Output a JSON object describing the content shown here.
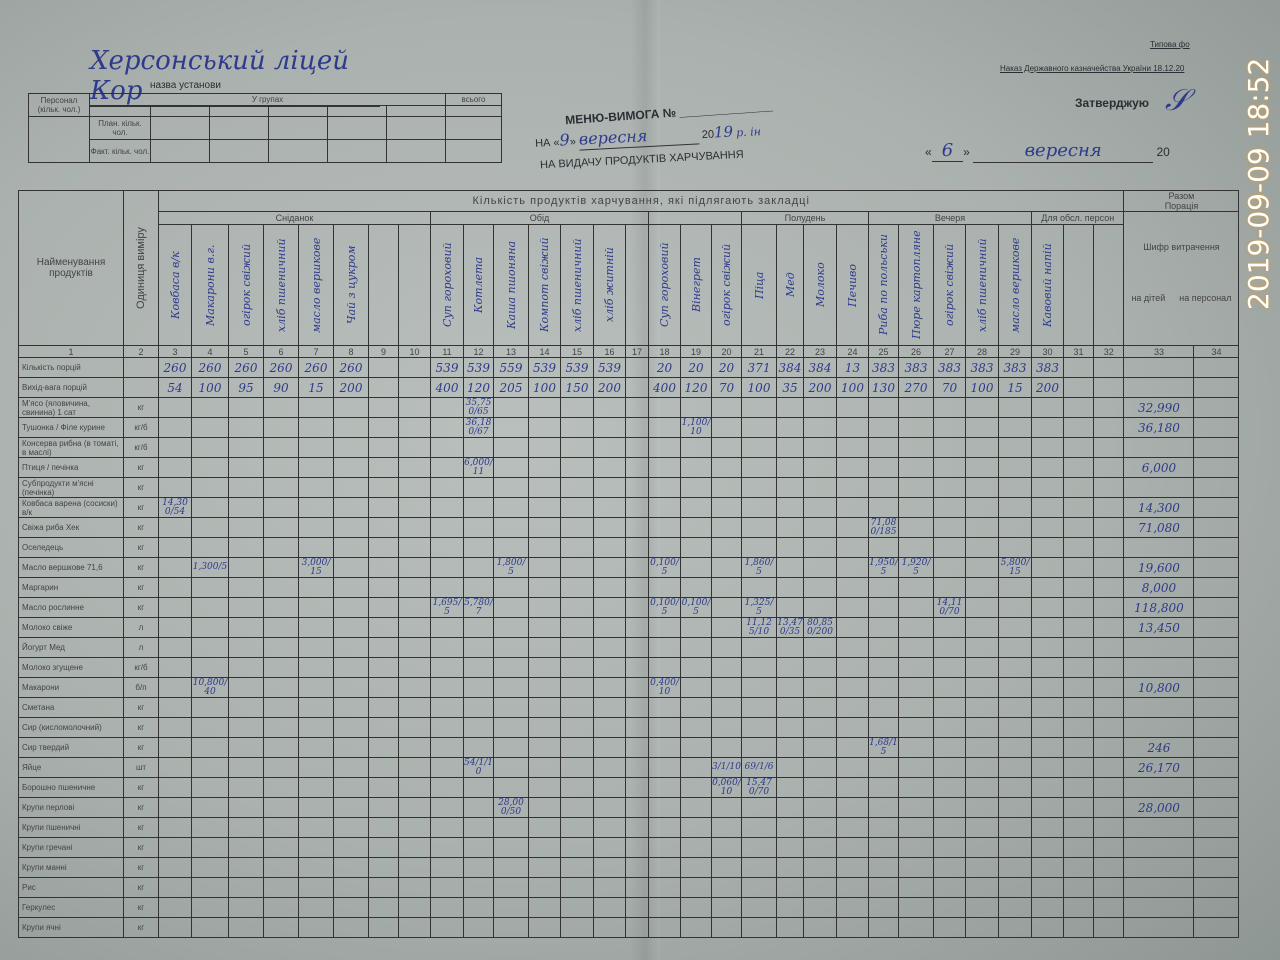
{
  "header": {
    "institution_handwritten": "Херсонський ліцей Кор",
    "institution_caption": "назва установи",
    "typical_form": "Типова фо",
    "order_text": "Наказ Державного казначейства України 18.12.20",
    "title": "МЕНЮ-ВИМОГА №",
    "on_label": "НА «",
    "on_day": "9",
    "on_month": "вересня",
    "on_year_prefix": "20",
    "on_year": "19",
    "on_year_suffix": "р. ін",
    "subtitle": "НА ВИДАЧУ ПРОДУКТІВ ХАРЧУВАННЯ",
    "approve_label": "Затверджую",
    "approve_day": "6",
    "approve_month": "вересня",
    "approve_year_prefix": "20"
  },
  "staff_table": {
    "staff_label": "Персонал (кільк. чол.)",
    "groups_label": "У групах",
    "total_label": "всього",
    "plan_label": "План. кільк. чол.",
    "fact_label": "Факт. кільк. чол."
  },
  "grid": {
    "products_header": "Найменування продуктів",
    "unit_header": "Одиниця виміру",
    "quantity_header": "Кількість продуктів харчування, які підлягають закладці",
    "meals": [
      {
        "label": "Сніданок",
        "span": 8
      },
      {
        "label": "Обід",
        "span": 7
      },
      {
        "label": "",
        "span": 3
      },
      {
        "label": "Полудень",
        "span": 4
      },
      {
        "label": "Вечеря",
        "span": 5
      },
      {
        "label": "Для обсл. персон",
        "span": 3
      }
    ],
    "total_header": "Разом",
    "ration_label": "Порація",
    "cipher_label": "Шифр витрачення",
    "children_label": "на дітей",
    "staff_col_label": "на персонал",
    "dishes": [
      "Ковбаса в/к",
      "Макарони в.г.",
      "огірок свіжий",
      "хліб пшеничний",
      "масло вершкове",
      "Чай з цукром",
      "",
      "",
      "Суп гороховий",
      "Котлета",
      "Каша пшоняна",
      "Компот свіжий",
      "хліб пшеничний",
      "хліб житній",
      "",
      "Суп гороховий",
      "Вінегрет",
      "огірок свіжий",
      "Піца",
      "Мед",
      "Молоко",
      "Печиво",
      "Риба по польськи",
      "Пюре картопляне",
      "огірок свіжий",
      "хліб пшеничний",
      "масло вершкове",
      "Кавовий напій",
      "",
      ""
    ],
    "column_numbers": [
      "1",
      "2",
      "3",
      "4",
      "5",
      "6",
      "7",
      "8",
      "9",
      "10",
      "11",
      "12",
      "13",
      "14",
      "15",
      "16",
      "17",
      "18",
      "19",
      "20",
      "21",
      "22",
      "23",
      "24",
      "25",
      "26",
      "27",
      "28",
      "29",
      "30",
      "31",
      "32",
      "33",
      "34"
    ],
    "rows": [
      {
        "label": "Кількість порцій",
        "unit": "",
        "values": [
          "260",
          "260",
          "260",
          "260",
          "260",
          "260",
          "",
          "",
          "539",
          "539",
          "559",
          "539",
          "539",
          "539",
          "",
          "20",
          "20",
          "20",
          "371",
          "384",
          "384",
          "13",
          "383",
          "383",
          "383",
          "383",
          "383",
          "383",
          "",
          ""
        ],
        "total": ""
      },
      {
        "label": "Вихід-вага порцій",
        "unit": "",
        "values": [
          "54",
          "100",
          "95",
          "90",
          "15",
          "200",
          "",
          "",
          "400",
          "120",
          "205",
          "100",
          "150",
          "200",
          "",
          "400",
          "120",
          "70",
          "100",
          "35",
          "200",
          "100",
          "130",
          "270",
          "70",
          "100",
          "15",
          "200",
          "",
          ""
        ],
        "total": ""
      },
      {
        "label": "М'ясо (яловичина, свинина) 1 сат",
        "unit": "кг",
        "notes": {
          "12": "35,750/65"
        },
        "total": "32,990"
      },
      {
        "label": "Тушонка / Філе курине",
        "unit": "кг/б",
        "notes": {
          "12": "36,180/67",
          "19": "1,100/10"
        },
        "total": "36,180"
      },
      {
        "label": "Консерва рибна (в томаті, в маслі)",
        "unit": "кг/б",
        "notes": {},
        "total": ""
      },
      {
        "label": "Птиця / печінка",
        "unit": "кг",
        "notes": {
          "12": "6,000/11"
        },
        "total": "6,000"
      },
      {
        "label": "Субпродукти м'ясні (печінка)",
        "unit": "кг",
        "notes": {},
        "total": ""
      },
      {
        "label": "Ковбаса варена (сосиски) в/к",
        "unit": "кг",
        "notes": {
          "3": "14,300/54"
        },
        "total": "14,300"
      },
      {
        "label": "Свіжа риба Хек",
        "unit": "кг",
        "notes": {
          "25": "71,080/185"
        },
        "total": "71,080"
      },
      {
        "label": "Оселедець",
        "unit": "кг",
        "notes": {},
        "total": ""
      },
      {
        "label": "Масло вершкове 71,6",
        "unit": "кг",
        "notes": {
          "4": "1,300/5",
          "7": "3,000/15",
          "13": "1,800/5",
          "18": "0,100/5",
          "21": "1,860/5",
          "25": "1,950/5",
          "26": "1,920/5",
          "29": "5,800/15"
        },
        "total": "19,600"
      },
      {
        "label": "Маргарин",
        "unit": "кг",
        "notes": {},
        "total": "8,000"
      },
      {
        "label": "Масло рослинне",
        "unit": "кг",
        "notes": {
          "11": "1,695/5",
          "12": "5,780/7",
          "18": "0,100/5",
          "19": "0,100/5",
          "21": "1,325/5",
          "27": "14,110/70"
        },
        "total": "118,800"
      },
      {
        "label": "Молоко свіже",
        "unit": "л",
        "notes": {
          "21": "11,125/10",
          "22": "13,470/35",
          "23": "80,850/200"
        },
        "total": "13,450"
      },
      {
        "label": "Йогурт Мед",
        "unit": "л",
        "notes": {},
        "total": ""
      },
      {
        "label": "Молоко згущене",
        "unit": "кг/б",
        "notes": {},
        "total": ""
      },
      {
        "label": "Макарони",
        "unit": "б/п",
        "notes": {
          "4": "10,800/40",
          "18": "0,400/10"
        },
        "total": "10,800"
      },
      {
        "label": "Сметана",
        "unit": "кг",
        "notes": {},
        "total": ""
      },
      {
        "label": "Сир (кисломолочний)",
        "unit": "кг",
        "notes": {},
        "total": ""
      },
      {
        "label": "Сир твердий",
        "unit": "кг",
        "notes": {
          "25": "1,68/15"
        },
        "total": "246"
      },
      {
        "label": "Яйце",
        "unit": "шт",
        "notes": {
          "12": "54/1/10",
          "20": "3/1/10",
          "21": "69/1/6"
        },
        "total": "26,170"
      },
      {
        "label": "Борошно пшеничне",
        "unit": "кг",
        "notes": {
          "20": "0,060/10",
          "21": "15,470/70"
        },
        "total": ""
      },
      {
        "label": "Крупи перлові",
        "unit": "кг",
        "notes": {
          "13": "28,000/50"
        },
        "total": "28,000"
      },
      {
        "label": "Крупи пшеничні",
        "unit": "кг",
        "notes": {},
        "total": ""
      },
      {
        "label": "Крупи гречані",
        "unit": "кг",
        "notes": {},
        "total": ""
      },
      {
        "label": "Крупи манні",
        "unit": "кг",
        "notes": {},
        "total": ""
      },
      {
        "label": "Рис",
        "unit": "кг",
        "notes": {},
        "total": ""
      },
      {
        "label": "Геркулес",
        "unit": "кг",
        "notes": {},
        "total": ""
      },
      {
        "label": "Крупи ячні",
        "unit": "кг",
        "notes": {},
        "total": ""
      }
    ]
  },
  "photo_timestamp": "2019-09-09 18:52",
  "colors": {
    "ink": "#2e3a8c",
    "paper": "#b3bab7",
    "timestamp_glow": "#e59b2a"
  }
}
